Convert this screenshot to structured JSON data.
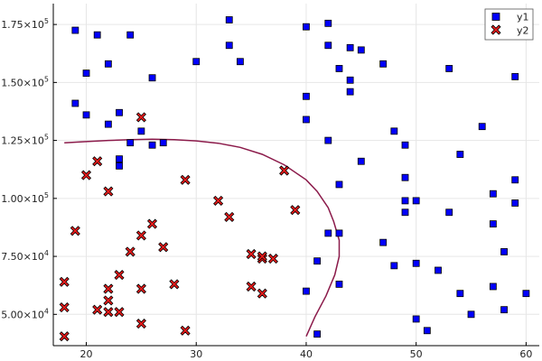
{
  "chart_data": {
    "type": "scatter",
    "title": "",
    "xlabel": "",
    "ylabel": "",
    "xlim": [
      17.0,
      61.2
    ],
    "ylim": [
      36500,
      184000
    ],
    "xticks": [
      20,
      30,
      40,
      50,
      60
    ],
    "xtick_labels": [
      "20",
      "30",
      "40",
      "50",
      "60"
    ],
    "yticks": [
      50000,
      75000,
      100000,
      125000,
      150000,
      175000
    ],
    "ytick_labels": [
      {
        "mant": "5.00",
        "exp": "4"
      },
      {
        "mant": "7.50",
        "exp": "4"
      },
      {
        "mant": "1.00",
        "exp": "5"
      },
      {
        "mant": "1.25",
        "exp": "5"
      },
      {
        "mant": "1.50",
        "exp": "5"
      },
      {
        "mant": "1.75",
        "exp": "5"
      }
    ],
    "y_mult": "×10",
    "grid": true,
    "legend_position": "top-right",
    "series": [
      {
        "name": "y1",
        "marker": "square",
        "color": "#0000ff",
        "points": [
          [
            19,
            172500
          ],
          [
            21,
            170500
          ],
          [
            24,
            170500
          ],
          [
            20,
            154000
          ],
          [
            22,
            158000
          ],
          [
            26,
            152000
          ],
          [
            19,
            141000
          ],
          [
            20,
            136000
          ],
          [
            22,
            132000
          ],
          [
            23,
            137000
          ],
          [
            24,
            124000
          ],
          [
            26,
            123000
          ],
          [
            27,
            124000
          ],
          [
            25,
            129000
          ],
          [
            23,
            117000
          ],
          [
            23,
            114000
          ],
          [
            30,
            159000
          ],
          [
            33,
            177000
          ],
          [
            33,
            166000
          ],
          [
            34,
            159000
          ],
          [
            40,
            174000
          ],
          [
            42,
            175500
          ],
          [
            42,
            166000
          ],
          [
            44,
            165000
          ],
          [
            45,
            164000
          ],
          [
            43,
            156000
          ],
          [
            44,
            151000
          ],
          [
            44,
            146000
          ],
          [
            47,
            158000
          ],
          [
            40,
            144000
          ],
          [
            40,
            134000
          ],
          [
            42,
            125000
          ],
          [
            48,
            129000
          ],
          [
            49,
            123000
          ],
          [
            45,
            116000
          ],
          [
            43,
            106000
          ],
          [
            49,
            109000
          ],
          [
            49,
            99000
          ],
          [
            50,
            99000
          ],
          [
            49,
            94000
          ],
          [
            53,
            156000
          ],
          [
            56,
            131000
          ],
          [
            54,
            119000
          ],
          [
            53,
            94000
          ],
          [
            59,
            152500
          ],
          [
            59,
            108000
          ],
          [
            59,
            98000
          ],
          [
            57,
            102000
          ],
          [
            57,
            89000
          ],
          [
            58,
            77000
          ],
          [
            42,
            85000
          ],
          [
            43,
            85000
          ],
          [
            47,
            81000
          ],
          [
            41,
            73000
          ],
          [
            48,
            71000
          ],
          [
            50,
            72000
          ],
          [
            52,
            69000
          ],
          [
            43,
            63000
          ],
          [
            40,
            60000
          ],
          [
            54,
            59000
          ],
          [
            57,
            62000
          ],
          [
            60,
            59000
          ],
          [
            55,
            50000
          ],
          [
            58,
            52000
          ],
          [
            50,
            48000
          ],
          [
            51,
            43000
          ],
          [
            41,
            41500
          ]
        ]
      },
      {
        "name": "y2",
        "marker": "x",
        "color": "#e81a1a",
        "points": [
          [
            25,
            135000
          ],
          [
            21,
            116000
          ],
          [
            20,
            110000
          ],
          [
            22,
            103000
          ],
          [
            29,
            108000
          ],
          [
            32,
            99000
          ],
          [
            33,
            92000
          ],
          [
            26,
            89000
          ],
          [
            19,
            86000
          ],
          [
            25,
            84000
          ],
          [
            27,
            79000
          ],
          [
            24,
            77000
          ],
          [
            35,
            76000
          ],
          [
            36,
            74000
          ],
          [
            36,
            75000
          ],
          [
            37,
            74000
          ],
          [
            38,
            112000
          ],
          [
            39,
            95000
          ],
          [
            18,
            64000
          ],
          [
            23,
            67000
          ],
          [
            28,
            63000
          ],
          [
            22,
            61000
          ],
          [
            25,
            61000
          ],
          [
            35,
            62000
          ],
          [
            36,
            59000
          ],
          [
            22,
            56000
          ],
          [
            18,
            53000
          ],
          [
            21,
            52000
          ],
          [
            22,
            51000
          ],
          [
            23,
            51000
          ],
          [
            25,
            46000
          ],
          [
            29,
            43000
          ],
          [
            18,
            40500
          ]
        ]
      },
      {
        "name": "",
        "marker": "line",
        "color": "#8b1a4a",
        "points": [
          [
            18,
            124000
          ],
          [
            20,
            124500
          ],
          [
            22,
            125000
          ],
          [
            24,
            125300
          ],
          [
            26,
            125500
          ],
          [
            28,
            125300
          ],
          [
            30,
            124800
          ],
          [
            32,
            123800
          ],
          [
            34,
            122000
          ],
          [
            36,
            119000
          ],
          [
            38,
            114500
          ],
          [
            40,
            108000
          ],
          [
            41,
            103000
          ],
          [
            42,
            96000
          ],
          [
            42.5,
            90000
          ],
          [
            43,
            82000
          ],
          [
            43,
            75000
          ],
          [
            42.6,
            67000
          ],
          [
            41.8,
            58000
          ],
          [
            40.8,
            49000
          ],
          [
            40,
            40500
          ]
        ]
      }
    ]
  }
}
